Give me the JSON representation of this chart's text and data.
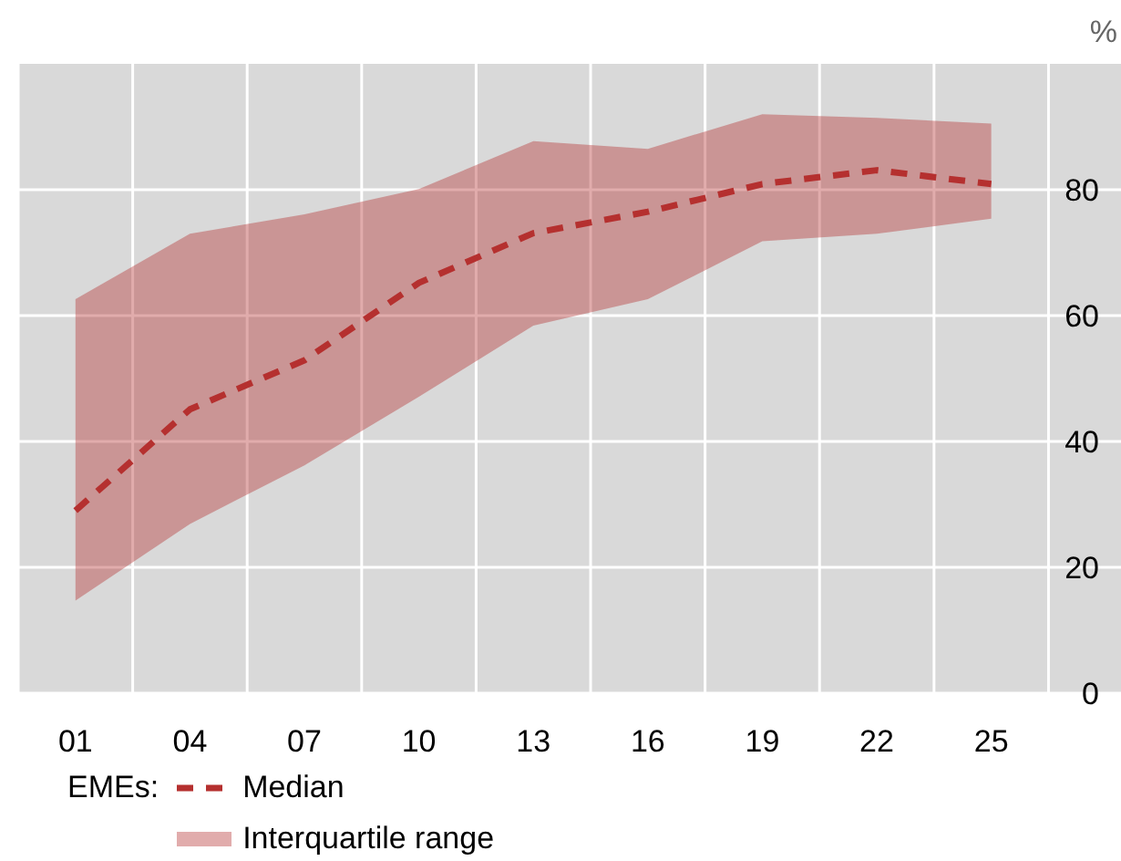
{
  "chart_data": {
    "type": "line",
    "ylabel": "%",
    "legend_title": "EMEs:",
    "annotations": [
      "Interquartile range"
    ],
    "x": [
      2001,
      2004,
      2007,
      2010,
      2013,
      2016,
      2019,
      2022,
      2025
    ],
    "series": [
      {
        "name": "Median",
        "color": "#b5302f",
        "line_style": "dashed",
        "values": [
          29.0,
          45.1,
          52.9,
          65.2,
          73.1,
          76.5,
          80.9,
          83.1,
          80.9
        ],
        "lower": [
          14.7,
          26.9,
          36.2,
          47.1,
          58.4,
          62.6,
          71.8,
          73.0,
          75.4
        ],
        "upper": [
          62.6,
          73.0,
          76.1,
          80.1,
          87.7,
          86.5,
          92.0,
          91.4,
          90.5
        ]
      }
    ],
    "xlim": [
      1999.5,
      2028.4
    ],
    "xticks": [
      {
        "value": 1999.5,
        "label": null
      },
      {
        "value": 2001,
        "label": "01"
      },
      {
        "value": 2002.5,
        "label": null
      },
      {
        "value": 2004,
        "label": "04"
      },
      {
        "value": 2005.5,
        "label": null
      },
      {
        "value": 2007,
        "label": "07"
      },
      {
        "value": 2008.5,
        "label": null
      },
      {
        "value": 2010,
        "label": "10"
      },
      {
        "value": 2011.5,
        "label": null
      },
      {
        "value": 2013,
        "label": "13"
      },
      {
        "value": 2014.5,
        "label": null
      },
      {
        "value": 2016,
        "label": "16"
      },
      {
        "value": 2017.5,
        "label": null
      },
      {
        "value": 2019,
        "label": "19"
      },
      {
        "value": 2020.5,
        "label": null
      },
      {
        "value": 2022,
        "label": "22"
      },
      {
        "value": 2023.5,
        "label": null
      },
      {
        "value": 2025,
        "label": "25"
      },
      {
        "value": 2026.5,
        "label": null
      }
    ],
    "ylim": [
      0,
      100
    ],
    "yticks": [
      0,
      20,
      40,
      60,
      80
    ],
    "grid": true,
    "legend": "bottom"
  }
}
